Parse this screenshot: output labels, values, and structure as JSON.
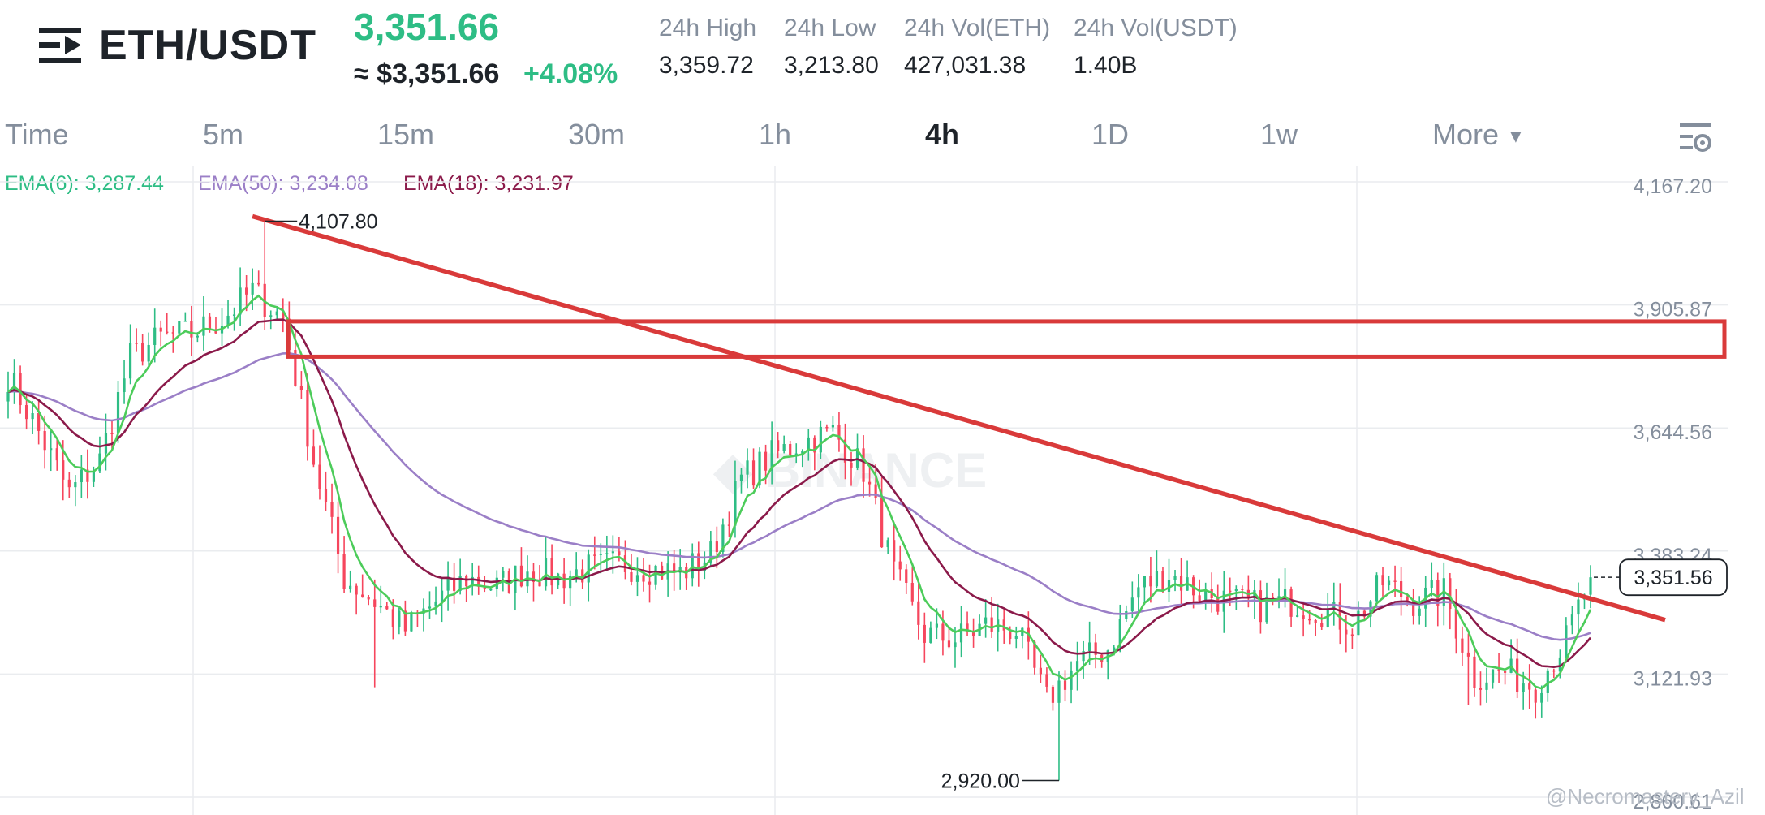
{
  "header": {
    "pair": "ETH/USDT",
    "price": "3,351.66",
    "approx_price": "≈ $3,351.66",
    "change_pct": "+4.08%",
    "stats": [
      {
        "label": "24h High",
        "value": "3,359.72"
      },
      {
        "label": "24h Low",
        "value": "3,213.80"
      },
      {
        "label": "24h Vol(ETH)",
        "value": "427,031.38"
      },
      {
        "label": "24h Vol(USDT)",
        "value": "1.40B"
      }
    ],
    "icons": {
      "menu": "menu-icon",
      "settings": "chart-settings-icon"
    }
  },
  "tabs": [
    "Time",
    "5m",
    "15m",
    "30m",
    "1h",
    "4h",
    "1D",
    "1w",
    "More"
  ],
  "active_tab": "4h",
  "indicators": [
    {
      "label": "EMA(6): 3,287.44",
      "color": "#2ebd85"
    },
    {
      "label": "EMA(50): 3,234.08",
      "color": "#9b7fc7"
    },
    {
      "label": "EMA(18): 3,231.97",
      "color": "#8b1a4a"
    }
  ],
  "colors": {
    "up": "#2ebd85",
    "down": "#f6465d",
    "ema6": "#4ccc5a",
    "ema18": "#8b1a4a",
    "ema50": "#9b7fc7",
    "annotation": "#d93a3a"
  },
  "chart_data": {
    "type": "candlestick",
    "y_ticks": [
      "4,167.20",
      "3,905.87",
      "3,644.56",
      "3,383.24",
      "3,121.93",
      "2,860.61"
    ],
    "y_tick_values": [
      4167.2,
      3905.87,
      3644.56,
      3383.24,
      3121.93,
      2860.61
    ],
    "ylim": [
      2860.61,
      4167.2
    ],
    "grid": true,
    "high_label": "4,107.80",
    "high_value": 4107.8,
    "low_label": "2,920.00",
    "low_value": 2920.0,
    "last_price_label": "3,351.56",
    "last_price": 3351.56,
    "anchors": [
      {
        "i": 0,
        "p": 3780
      },
      {
        "i": 5,
        "p": 3660
      },
      {
        "i": 10,
        "p": 3530
      },
      {
        "i": 15,
        "p": 3600
      },
      {
        "i": 20,
        "p": 3820
      },
      {
        "i": 25,
        "p": 3860
      },
      {
        "i": 30,
        "p": 3870
      },
      {
        "i": 35,
        "p": 3900
      },
      {
        "i": 40,
        "p": 3960
      },
      {
        "i": 45,
        "p": 3900
      },
      {
        "i": 50,
        "p": 3600
      },
      {
        "i": 55,
        "p": 3350
      },
      {
        "i": 60,
        "p": 3300
      },
      {
        "i": 65,
        "p": 3240
      },
      {
        "i": 70,
        "p": 3300
      },
      {
        "i": 75,
        "p": 3350
      },
      {
        "i": 80,
        "p": 3330
      },
      {
        "i": 85,
        "p": 3370
      },
      {
        "i": 90,
        "p": 3350
      },
      {
        "i": 95,
        "p": 3370
      },
      {
        "i": 100,
        "p": 3380
      },
      {
        "i": 105,
        "p": 3370
      },
      {
        "i": 110,
        "p": 3360
      },
      {
        "i": 115,
        "p": 3400
      },
      {
        "i": 120,
        "p": 3560
      },
      {
        "i": 125,
        "p": 3610
      },
      {
        "i": 130,
        "p": 3640
      },
      {
        "i": 135,
        "p": 3660
      },
      {
        "i": 140,
        "p": 3580
      },
      {
        "i": 145,
        "p": 3360
      },
      {
        "i": 150,
        "p": 3230
      },
      {
        "i": 155,
        "p": 3220
      },
      {
        "i": 160,
        "p": 3250
      },
      {
        "i": 165,
        "p": 3240
      },
      {
        "i": 170,
        "p": 3090
      },
      {
        "i": 175,
        "p": 3170
      },
      {
        "i": 180,
        "p": 3200
      },
      {
        "i": 185,
        "p": 3330
      },
      {
        "i": 190,
        "p": 3360
      },
      {
        "i": 195,
        "p": 3320
      },
      {
        "i": 200,
        "p": 3300
      },
      {
        "i": 205,
        "p": 3290
      },
      {
        "i": 210,
        "p": 3300
      },
      {
        "i": 215,
        "p": 3280
      },
      {
        "i": 220,
        "p": 3250
      },
      {
        "i": 225,
        "p": 3340
      },
      {
        "i": 230,
        "p": 3300
      },
      {
        "i": 235,
        "p": 3320
      },
      {
        "i": 240,
        "p": 3140
      },
      {
        "i": 245,
        "p": 3150
      },
      {
        "i": 250,
        "p": 3120
      },
      {
        "i": 255,
        "p": 3220
      },
      {
        "i": 259,
        "p": 3352
      }
    ],
    "candle_count": 260,
    "trendline": {
      "from_value": 4107.8,
      "to_value": 3261
    },
    "resistance_zone": [
      3820,
      3895
    ]
  },
  "watermark": "@Necromastery_Azil"
}
